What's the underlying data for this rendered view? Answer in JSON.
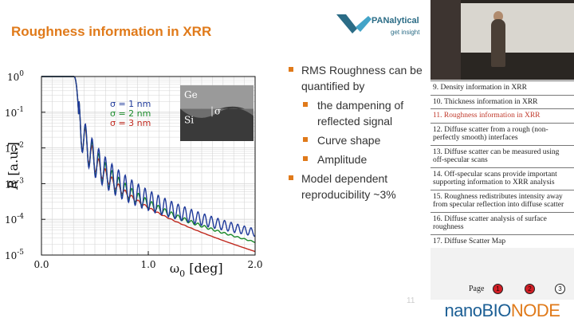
{
  "slide": {
    "title": "Roughness information in XRR",
    "number": "11",
    "logo": {
      "name": "PANalytical",
      "tagline": "get insight",
      "colors": [
        "#2b6c86",
        "#43a4c8"
      ]
    },
    "bullets": [
      {
        "text": "RMS Roughness can be quantified by",
        "level": 1
      },
      {
        "text": "the dampening of reflected signal",
        "level": 2
      },
      {
        "text": "Curve shape",
        "level": 2
      },
      {
        "text": "Amplitude",
        "level": 2
      },
      {
        "text": "Model dependent reproducibility ~3%",
        "level": 1
      }
    ]
  },
  "chart_data": {
    "type": "line",
    "xlabel": "ω",
    "xlabel_sub": "0",
    "xlabel_unit": " [deg]",
    "ylabel": "R",
    "ylabel_unit": " [a.u.]",
    "xlim": [
      0,
      2.0
    ],
    "ylim_log10": [
      -5,
      0
    ],
    "y_scale": "log",
    "grid": true,
    "x_ticks": [
      "0.0",
      "1.0",
      "2.0"
    ],
    "y_ticks": [
      {
        "base": "10",
        "exp": "0"
      },
      {
        "base": "10",
        "exp": "-1"
      },
      {
        "base": "10",
        "exp": "-2"
      },
      {
        "base": "10",
        "exp": "-3"
      },
      {
        "base": "10",
        "exp": "-4"
      },
      {
        "base": "10",
        "exp": "-5"
      }
    ],
    "legend_placement": "top-center",
    "critical_angle": 0.35,
    "fringe_period": 0.062,
    "series": [
      {
        "name": "σ = 1 nm",
        "color": "#1f3a9a",
        "sigma": 1
      },
      {
        "name": "σ = 2 nm",
        "color": "#1a8a2a",
        "sigma": 2
      },
      {
        "name": "σ = 3 nm",
        "color": "#c0291e",
        "sigma": 3
      }
    ],
    "inset": {
      "top_label": "Ge",
      "bottom_label": "Si",
      "symbol": "σ"
    }
  },
  "sidebar": {
    "toc": [
      {
        "label": "9. Density information in XRR",
        "active": false
      },
      {
        "label": "10. Thickness information in XRR",
        "active": false
      },
      {
        "label": "11. Roughness information in XRR",
        "active": true
      },
      {
        "label": "12. Diffuse scatter from a rough (non-perfectly smooth) interfaces",
        "active": false
      },
      {
        "label": "13. Diffuse scatter can be measured using off-specular scans",
        "active": false
      },
      {
        "label": "14. Off-specular scans provide important supporting information to XRR analysis",
        "active": false
      },
      {
        "label": "15. Roughness redistributes intensity away from specular reflection into diffuse scatter",
        "active": false
      },
      {
        "label": "16. Diffuse scatter analysis of surface roughness",
        "active": false
      },
      {
        "label": "17. Diffuse Scatter Map",
        "active": false
      }
    ],
    "pager": {
      "label": "Page",
      "pages": [
        "1",
        "2",
        "3"
      ],
      "current": "3"
    },
    "brand": {
      "part1": "nanoBIO",
      "part2": "NODE"
    }
  }
}
